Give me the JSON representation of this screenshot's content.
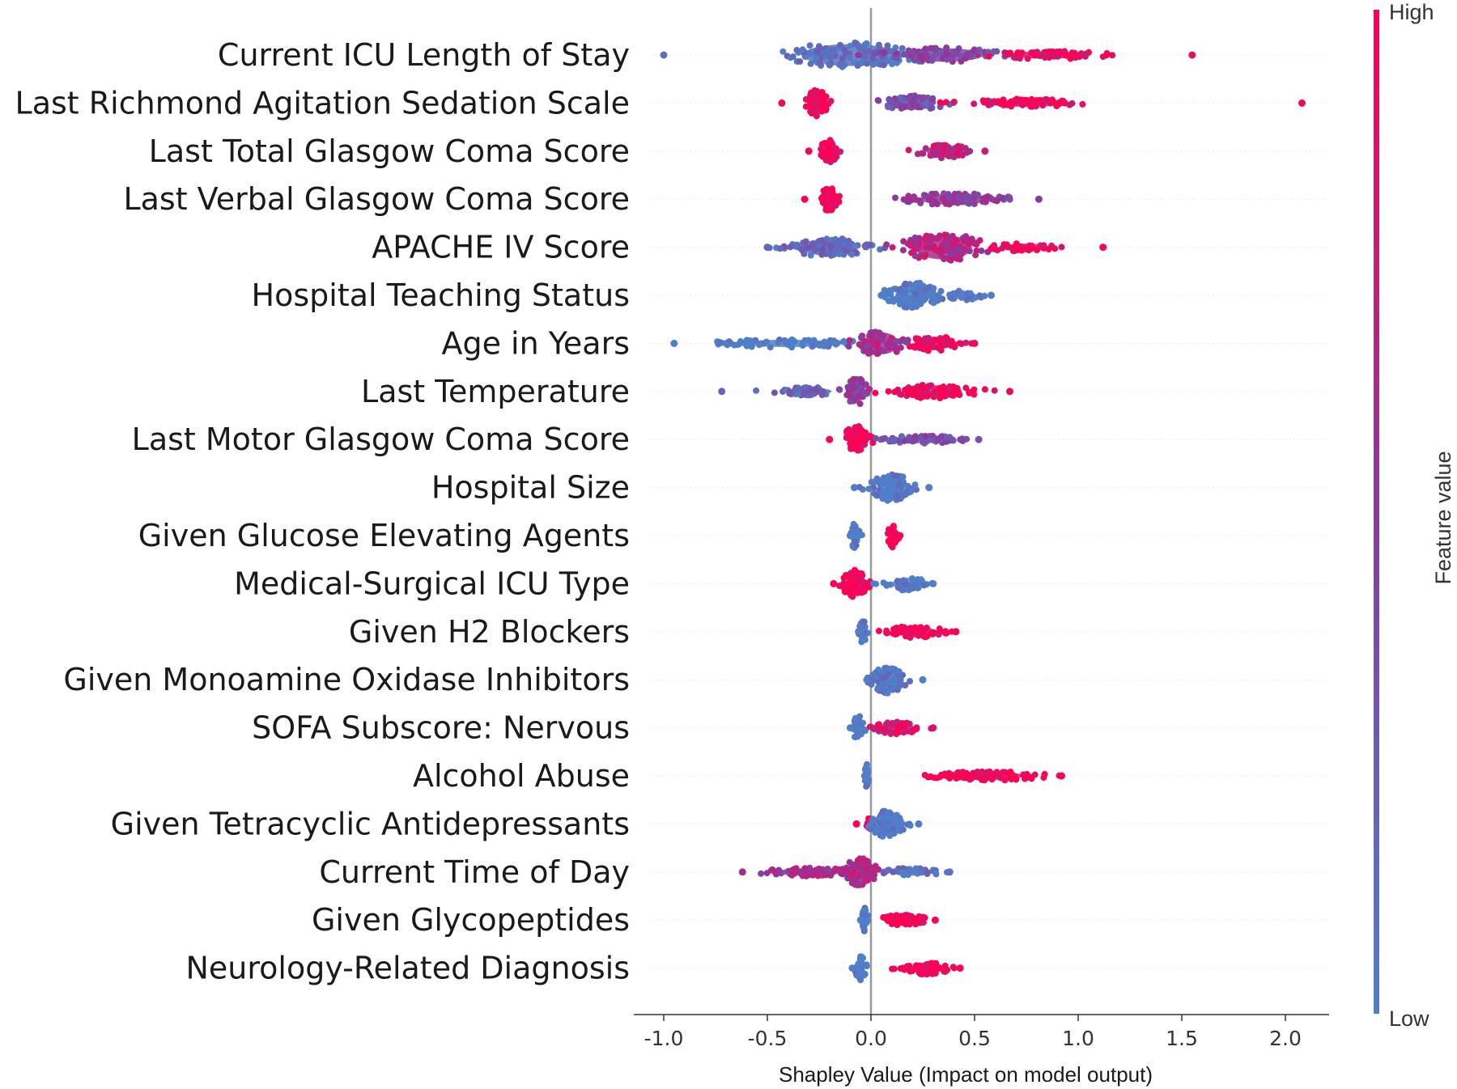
{
  "chart_data": {
    "type": "scatter",
    "subtype": "shap-beeswarm-summary",
    "xlabel": "Shapley Value (Impact on model output)",
    "xlim": [
      -1.1,
      2.2
    ],
    "xticks": [
      "-1.0",
      "-0.5",
      "0.0",
      "0.5",
      "1.0",
      "1.5",
      "2.0"
    ],
    "xtick_values": [
      -1.0,
      -0.5,
      0.0,
      0.5,
      1.0,
      1.5,
      2.0
    ],
    "grid": false,
    "zero_line": true,
    "colorbar": {
      "label": "Feature value",
      "high_label": "High",
      "low_label": "Low",
      "high_color": "#ff0052",
      "low_color": "#4f7fc9",
      "mid_color": "#8a3a9e"
    },
    "features": [
      {
        "name": "Current ICU Length of Stay",
        "min": -1.0,
        "max": 1.55,
        "clusters": [
          {
            "center": -0.1,
            "spread": 0.42,
            "width": 0.9,
            "color": 0.1,
            "n": 130
          },
          {
            "center": 0.35,
            "spread": 0.35,
            "width": 0.55,
            "color": 0.45,
            "n": 80
          },
          {
            "center": 0.85,
            "spread": 0.35,
            "width": 0.3,
            "color": 0.9,
            "n": 60
          }
        ]
      },
      {
        "name": "Last Richmond Agitation Sedation Scale",
        "min": -0.43,
        "max": 2.08,
        "clusters": [
          {
            "center": -0.26,
            "spread": 0.06,
            "width": 1.0,
            "color": 0.95,
            "n": 60
          },
          {
            "center": 0.2,
            "spread": 0.2,
            "width": 0.55,
            "color": 0.35,
            "n": 55
          },
          {
            "center": 0.75,
            "spread": 0.35,
            "width": 0.3,
            "color": 0.92,
            "n": 70
          }
        ]
      },
      {
        "name": "Last Total Glasgow Coma Score",
        "min": -0.3,
        "max": 0.55,
        "clusters": [
          {
            "center": -0.2,
            "spread": 0.05,
            "width": 0.9,
            "color": 0.95,
            "n": 50
          },
          {
            "center": 0.35,
            "spread": 0.15,
            "width": 0.5,
            "color": 0.75,
            "n": 60
          }
        ]
      },
      {
        "name": "Last Verbal Glasgow Coma Score",
        "min": -0.32,
        "max": 0.81,
        "clusters": [
          {
            "center": -0.2,
            "spread": 0.05,
            "width": 0.9,
            "color": 0.95,
            "n": 50
          },
          {
            "center": 0.4,
            "spread": 0.3,
            "width": 0.45,
            "color": 0.5,
            "n": 80
          }
        ]
      },
      {
        "name": "APACHE IV Score",
        "min": -0.5,
        "max": 1.12,
        "clusters": [
          {
            "center": -0.2,
            "spread": 0.25,
            "width": 0.7,
            "color": 0.15,
            "n": 90
          },
          {
            "center": 0.35,
            "spread": 0.25,
            "width": 1.0,
            "color": 0.65,
            "n": 110
          },
          {
            "center": 0.75,
            "spread": 0.2,
            "width": 0.3,
            "color": 0.95,
            "n": 40
          }
        ]
      },
      {
        "name": "Hospital Teaching Status",
        "min": 0.05,
        "max": 0.58,
        "clusters": [
          {
            "center": 0.2,
            "spread": 0.15,
            "width": 1.0,
            "color": 0.0,
            "n": 100
          },
          {
            "center": 0.45,
            "spread": 0.1,
            "width": 0.35,
            "color": 0.0,
            "n": 30
          }
        ]
      },
      {
        "name": "Age in Years",
        "min": -0.95,
        "max": 0.5,
        "clusters": [
          {
            "center": -0.4,
            "spread": 0.45,
            "width": 0.3,
            "color": 0.0,
            "n": 70
          },
          {
            "center": 0.05,
            "spread": 0.15,
            "width": 0.9,
            "color": 0.6,
            "n": 70
          },
          {
            "center": 0.3,
            "spread": 0.15,
            "width": 0.55,
            "color": 0.9,
            "n": 50
          }
        ]
      },
      {
        "name": "Last Temperature",
        "min": -0.72,
        "max": 0.67,
        "clusters": [
          {
            "center": -0.3,
            "spread": 0.2,
            "width": 0.3,
            "color": 0.2,
            "n": 50
          },
          {
            "center": -0.07,
            "spread": 0.06,
            "width": 1.0,
            "color": 0.5,
            "n": 50
          },
          {
            "center": 0.3,
            "spread": 0.25,
            "width": 0.5,
            "color": 0.95,
            "n": 80
          }
        ]
      },
      {
        "name": "Last Motor Glasgow Coma Score",
        "min": -0.2,
        "max": 0.52,
        "clusters": [
          {
            "center": -0.07,
            "spread": 0.08,
            "width": 1.0,
            "color": 0.95,
            "n": 60
          },
          {
            "center": 0.25,
            "spread": 0.22,
            "width": 0.3,
            "color": 0.35,
            "n": 70
          }
        ]
      },
      {
        "name": "Hospital Size",
        "min": -0.08,
        "max": 0.28,
        "clusters": [
          {
            "center": 0.1,
            "spread": 0.12,
            "width": 1.0,
            "color": 0.0,
            "n": 90
          }
        ]
      },
      {
        "name": "Given Glucose Elevating Agents",
        "min": -0.1,
        "max": 0.14,
        "clusters": [
          {
            "center": -0.08,
            "spread": 0.03,
            "width": 0.9,
            "color": 0.0,
            "n": 35
          },
          {
            "center": 0.1,
            "spread": 0.03,
            "width": 0.9,
            "color": 1.0,
            "n": 40
          }
        ]
      },
      {
        "name": "Medical-Surgical ICU Type",
        "min": -0.18,
        "max": 0.3,
        "clusters": [
          {
            "center": -0.08,
            "spread": 0.07,
            "width": 1.0,
            "color": 1.0,
            "n": 70
          },
          {
            "center": 0.17,
            "spread": 0.12,
            "width": 0.5,
            "color": 0.0,
            "n": 55
          }
        ]
      },
      {
        "name": "Given H2 Blockers",
        "min": -0.06,
        "max": 0.41,
        "clusters": [
          {
            "center": -0.04,
            "spread": 0.02,
            "width": 0.9,
            "color": 0.0,
            "n": 30
          },
          {
            "center": 0.22,
            "spread": 0.16,
            "width": 0.45,
            "color": 1.0,
            "n": 60
          }
        ]
      },
      {
        "name": "Given Monoamine Oxidase Inhibitors",
        "min": -0.02,
        "max": 0.25,
        "clusters": [
          {
            "center": 0.08,
            "spread": 0.1,
            "width": 1.0,
            "color": 0.0,
            "n": 80
          }
        ]
      },
      {
        "name": "SOFA Subscore: Nervous",
        "min": -0.1,
        "max": 0.3,
        "clusters": [
          {
            "center": -0.06,
            "spread": 0.03,
            "width": 1.0,
            "color": 0.0,
            "n": 35
          },
          {
            "center": 0.13,
            "spread": 0.14,
            "width": 0.5,
            "color": 0.85,
            "n": 55
          }
        ]
      },
      {
        "name": "Alcohol Abuse",
        "min": -0.03,
        "max": 0.92,
        "clusters": [
          {
            "center": -0.02,
            "spread": 0.01,
            "width": 0.9,
            "color": 0.0,
            "n": 25
          },
          {
            "center": 0.55,
            "spread": 0.34,
            "width": 0.35,
            "color": 1.0,
            "n": 90
          }
        ]
      },
      {
        "name": "Given Tetracyclic Antidepressants",
        "min": -0.07,
        "max": 0.23,
        "clusters": [
          {
            "center": -0.01,
            "spread": 0.02,
            "width": 0.4,
            "color": 1.0,
            "n": 12
          },
          {
            "center": 0.07,
            "spread": 0.1,
            "width": 1.0,
            "color": 0.0,
            "n": 70
          }
        ]
      },
      {
        "name": "Current Time of Day",
        "min": -0.62,
        "max": 0.38,
        "clusters": [
          {
            "center": -0.3,
            "spread": 0.3,
            "width": 0.3,
            "color": 0.6,
            "n": 70
          },
          {
            "center": -0.05,
            "spread": 0.1,
            "width": 1.0,
            "color": 0.65,
            "n": 70
          },
          {
            "center": 0.2,
            "spread": 0.18,
            "width": 0.3,
            "color": 0.1,
            "n": 45
          }
        ]
      },
      {
        "name": "Given Glycopeptides",
        "min": -0.05,
        "max": 0.31,
        "clusters": [
          {
            "center": -0.03,
            "spread": 0.02,
            "width": 0.9,
            "color": 0.0,
            "n": 30
          },
          {
            "center": 0.16,
            "spread": 0.15,
            "width": 0.4,
            "color": 1.0,
            "n": 60
          }
        ]
      },
      {
        "name": "Neurology-Related Diagnosis",
        "min": -0.09,
        "max": 0.43,
        "clusters": [
          {
            "center": -0.05,
            "spread": 0.03,
            "width": 0.9,
            "color": 0.0,
            "n": 35
          },
          {
            "center": 0.27,
            "spread": 0.15,
            "width": 0.45,
            "color": 1.0,
            "n": 55
          }
        ]
      }
    ]
  }
}
